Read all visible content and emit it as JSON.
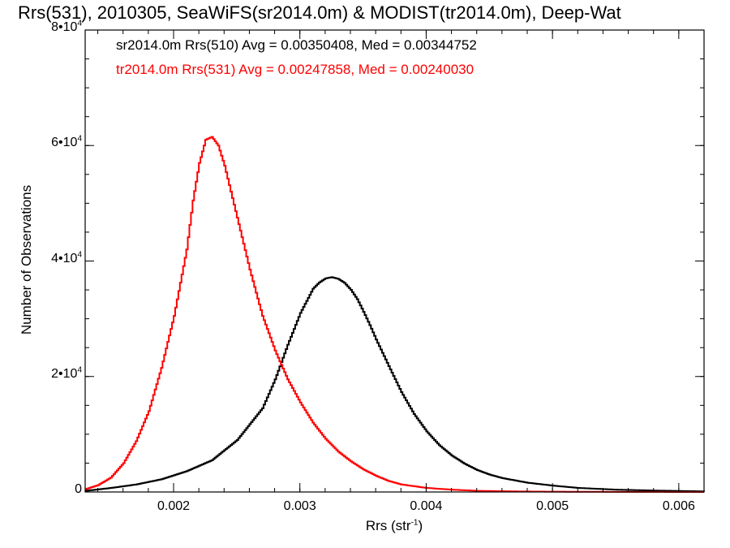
{
  "chart_data": {
    "type": "line",
    "title": "Rrs(531), 2010305, SeaWiFS(sr2014.0m) & MODIST(tr2014.0m), Deep-Wat",
    "xlabel_main": "Rrs (str",
    "xlabel_sup": "-1",
    "xlabel_end": ")",
    "ylabel": "Number of Observations",
    "xlim": [
      0.0013,
      0.0062
    ],
    "ylim": [
      0,
      80000
    ],
    "x_ticks": [
      {
        "value": 0.002,
        "label": "0.002"
      },
      {
        "value": 0.003,
        "label": "0.003"
      },
      {
        "value": 0.004,
        "label": "0.004"
      },
      {
        "value": 0.005,
        "label": "0.005"
      },
      {
        "value": 0.006,
        "label": "0.006"
      }
    ],
    "y_ticks": [
      {
        "value": 0,
        "label": "0",
        "sup": ""
      },
      {
        "value": 20000,
        "label": "2•10",
        "sup": "4"
      },
      {
        "value": 40000,
        "label": "4•10",
        "sup": "4"
      },
      {
        "value": 60000,
        "label": "6•10",
        "sup": "4"
      },
      {
        "value": 80000,
        "label": "8•10",
        "sup": "4"
      }
    ],
    "series": [
      {
        "name": "sr2014.0m Rrs(510) Avg = 0.00350408, Med = 0.00344752",
        "color": "#000000",
        "x": [
          0.0013,
          0.0015,
          0.0017,
          0.0019,
          0.0021,
          0.0023,
          0.0025,
          0.0027,
          0.0028,
          0.0029,
          0.003,
          0.0031,
          0.00315,
          0.0032,
          0.00325,
          0.0033,
          0.00335,
          0.0034,
          0.00345,
          0.0035,
          0.00355,
          0.0036,
          0.0037,
          0.0038,
          0.0039,
          0.004,
          0.0041,
          0.0042,
          0.0043,
          0.0044,
          0.0045,
          0.0046,
          0.0048,
          0.005,
          0.0052,
          0.0055,
          0.0058,
          0.0062
        ],
        "y": [
          200,
          700,
          1300,
          2200,
          3600,
          5500,
          9000,
          14500,
          19500,
          25500,
          31000,
          35200,
          36300,
          37000,
          37200,
          36900,
          36200,
          35000,
          33400,
          31200,
          28900,
          26400,
          21800,
          17300,
          13500,
          10500,
          8100,
          6300,
          4900,
          3800,
          3000,
          2400,
          1600,
          1100,
          700,
          400,
          250,
          100
        ]
      },
      {
        "name": "tr2014.0m Rrs(531) Avg = 0.00247858, Med = 0.00240030",
        "color": "#ff0000",
        "x": [
          0.0013,
          0.0014,
          0.0015,
          0.0016,
          0.0017,
          0.0018,
          0.0019,
          0.002,
          0.0021,
          0.00215,
          0.0022,
          0.00225,
          0.0023,
          0.00235,
          0.0024,
          0.0025,
          0.0026,
          0.0027,
          0.0028,
          0.0029,
          0.003,
          0.0031,
          0.0032,
          0.0033,
          0.0034,
          0.0035,
          0.0036,
          0.0037,
          0.0038,
          0.004,
          0.0042,
          0.0044,
          0.0047,
          0.005,
          0.0055,
          0.0062
        ],
        "y": [
          500,
          1200,
          2500,
          5000,
          8800,
          14000,
          21500,
          30500,
          42000,
          50500,
          57000,
          61000,
          61500,
          60000,
          56500,
          47500,
          38500,
          30500,
          24500,
          19500,
          15500,
          12000,
          9200,
          7000,
          5300,
          3900,
          2800,
          1900,
          1300,
          700,
          400,
          200,
          100,
          50,
          20,
          0
        ]
      }
    ]
  }
}
